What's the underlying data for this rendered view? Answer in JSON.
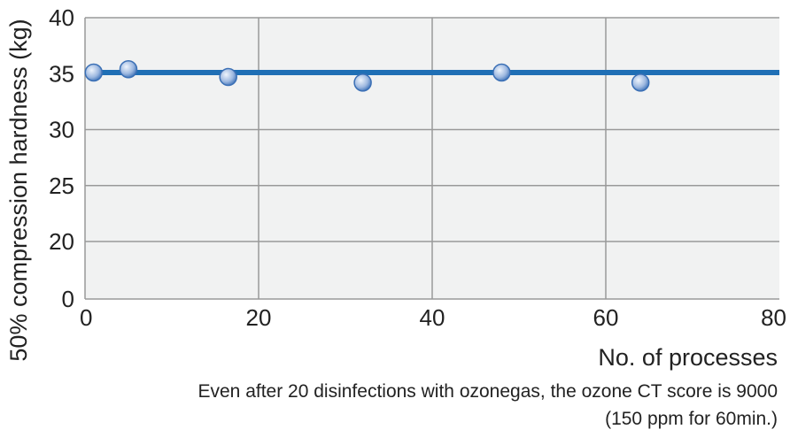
{
  "chart_data": {
    "type": "scatter",
    "title": "",
    "xlabel": "No. of processes",
    "ylabel": "50% compression hardness (kg)",
    "xlim": [
      0,
      80
    ],
    "x_ticks": [
      0,
      20,
      40,
      60,
      80
    ],
    "y_axis": {
      "scale": "broken",
      "break_between": [
        0,
        20
      ],
      "ticks": [
        0,
        20,
        25,
        30,
        35,
        40
      ]
    },
    "grid": true,
    "reference_line": {
      "y": 35.1
    },
    "series": [
      {
        "points": [
          {
            "x": 1,
            "y": 35.1
          },
          {
            "x": 5,
            "y": 35.4
          },
          {
            "x": 16.5,
            "y": 34.7
          },
          {
            "x": 32,
            "y": 34.2
          },
          {
            "x": 48,
            "y": 35.1
          },
          {
            "x": 64,
            "y": 34.2
          }
        ]
      }
    ],
    "note_lines": [
      "Even after 20 disinfections with ozonegas, the ozone CT score is 9000",
      "(150 ppm for 60min.)"
    ],
    "colors": {
      "plot_background": "#f1f2f2",
      "grid": "#999999",
      "line": "#1f6fb5",
      "marker_fill": "#9db8e0",
      "marker_edge": "#3a6fb5",
      "marker_highlight": "#eef4fc"
    }
  }
}
